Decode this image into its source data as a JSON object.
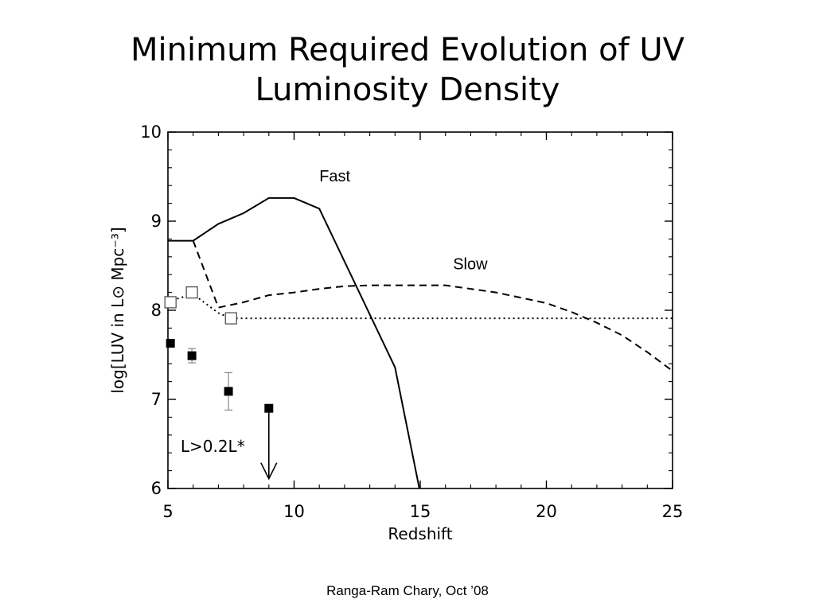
{
  "slide": {
    "title_line1": "Minimum Required Evolution of UV",
    "title_line2": "Luminosity Density",
    "footer": "Ranga-Ram Chary, Oct ’08"
  },
  "chart_data": {
    "type": "line",
    "title": "",
    "xlabel": "Redshift",
    "ylabel": "log[LUV in L⊙ Mpc⁻³]",
    "xlim": [
      5,
      25
    ],
    "ylim": [
      6,
      10
    ],
    "xticks": [
      5,
      10,
      15,
      20,
      25
    ],
    "yticks": [
      6,
      7,
      8,
      9,
      10
    ],
    "grid": false,
    "legend": "none",
    "series": [
      {
        "name": "Fast",
        "style": "solid",
        "x": [
          5.0,
          6.0,
          7.0,
          8.0,
          9.0,
          10.0,
          11.0,
          14.0,
          15.0
        ],
        "y": [
          8.78,
          8.78,
          8.97,
          9.09,
          9.26,
          9.26,
          9.14,
          7.36,
          5.95
        ]
      },
      {
        "name": "Slow",
        "style": "dashed",
        "x": [
          6.0,
          7.0,
          8.0,
          9.0,
          10.0,
          11.0,
          12.0,
          13.0,
          14.0,
          15.0,
          16.0,
          17.0,
          18.0,
          19.0,
          20.0,
          21.0,
          22.0,
          23.0,
          24.0,
          25.0
        ],
        "y": [
          8.78,
          8.03,
          8.09,
          8.17,
          8.2,
          8.24,
          8.27,
          8.28,
          8.28,
          8.28,
          8.28,
          8.24,
          8.2,
          8.14,
          8.08,
          7.98,
          7.86,
          7.72,
          7.53,
          7.32
        ]
      },
      {
        "name": "dotted",
        "style": "dotted",
        "x": [
          5.0,
          6.0,
          7.0,
          7.5,
          10.0,
          15.0,
          20.0,
          25.0
        ],
        "y": [
          8.1,
          8.18,
          7.97,
          7.91,
          7.91,
          7.91,
          7.91,
          7.91
        ]
      }
    ],
    "open_squares": [
      {
        "x": 5.1,
        "y": 8.09
      },
      {
        "x": 5.95,
        "y": 8.2
      },
      {
        "x": 7.5,
        "y": 7.91
      }
    ],
    "filled_squares": [
      {
        "x": 5.1,
        "y": 7.63,
        "yerr": 0.0
      },
      {
        "x": 5.95,
        "y": 7.49,
        "yerr": 0.08
      },
      {
        "x": 7.4,
        "y": 7.09,
        "yerr": 0.21
      },
      {
        "x": 9.0,
        "y": 6.9,
        "yerr": 0.0
      }
    ],
    "upper_limit_arrow": {
      "x": 9.0,
      "y_from": 6.9,
      "y_to": 6.11
    },
    "annotations": [
      {
        "text": "Fast",
        "x": 11.0,
        "y": 9.52
      },
      {
        "text": "Slow",
        "x": 16.3,
        "y": 8.53
      },
      {
        "text": "L>0.2L*",
        "x": 5.5,
        "y": 6.48
      }
    ]
  }
}
